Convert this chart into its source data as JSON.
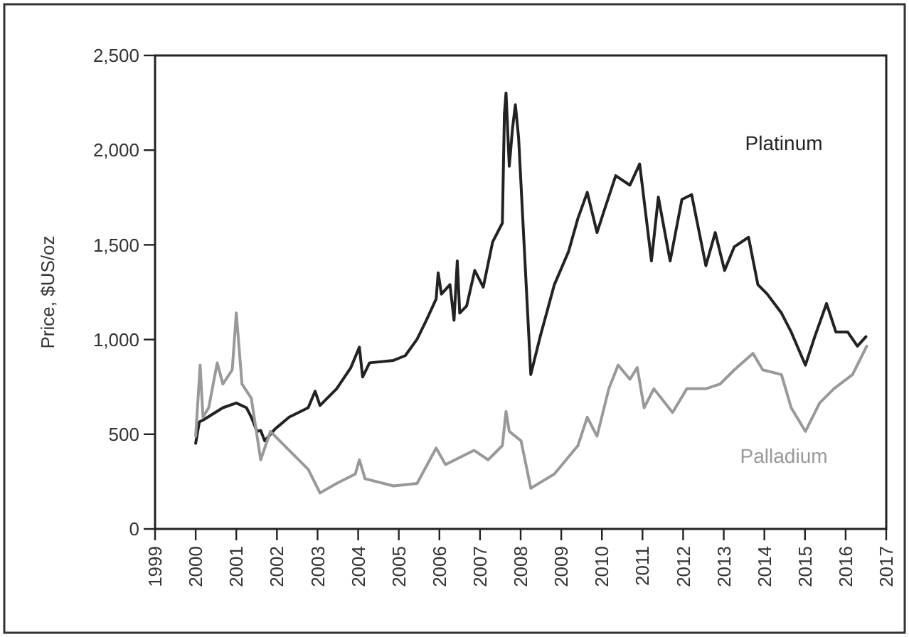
{
  "chart_data": {
    "type": "line",
    "ylabel": "Price, $US/oz",
    "xlim": [
      1999,
      2017
    ],
    "xticks": [
      1999,
      2000,
      2001,
      2002,
      2003,
      2004,
      2005,
      2006,
      2007,
      2008,
      2009,
      2010,
      2011,
      2012,
      2013,
      2014,
      2015,
      2016,
      2017
    ],
    "ylim": [
      0,
      2500
    ],
    "yticks": [
      0,
      500,
      {
        "value": 1000,
        "label": "1,000"
      },
      {
        "value": 1500,
        "label": "1,500"
      },
      {
        "value": 2000,
        "label": "2,000"
      },
      {
        "value": 2500,
        "label": "2,500"
      }
    ],
    "grid": false,
    "marker": "none",
    "line_style": "solid",
    "series": [
      {
        "name": "Platinum",
        "color": "#222222",
        "x": [
          2000.0,
          2000.09,
          2000.2,
          2000.67,
          2001.0,
          2001.25,
          2001.37,
          2001.51,
          2001.6,
          2001.7,
          2001.95,
          2002.3,
          2002.77,
          2002.94,
          2003.06,
          2003.47,
          2003.82,
          2004.03,
          2004.11,
          2004.28,
          2004.87,
          2005.16,
          2005.45,
          2005.68,
          2005.92,
          2005.97,
          2006.05,
          2006.26,
          2006.36,
          2006.44,
          2006.5,
          2006.67,
          2006.87,
          2007.08,
          2007.31,
          2007.55,
          2007.6,
          2007.64,
          2007.72,
          2007.8,
          2007.87,
          2007.95,
          2008.25,
          2008.48,
          2008.83,
          2009.18,
          2009.41,
          2009.64,
          2009.88,
          2010.05,
          2010.34,
          2010.69,
          2010.93,
          2011.22,
          2011.39,
          2011.68,
          2011.97,
          2012.21,
          2012.56,
          2012.79,
          2013.02,
          2013.26,
          2013.61,
          2013.84,
          2014.07,
          2014.42,
          2014.66,
          2015.01,
          2015.24,
          2015.53,
          2015.76,
          2016.05,
          2016.29,
          2016.5
        ],
        "values": [
          452,
          565,
          577,
          640,
          665,
          640,
          590,
          515,
          520,
          465,
          527,
          590,
          640,
          727,
          652,
          740,
          852,
          960,
          802,
          877,
          890,
          915,
          1002,
          1102,
          1215,
          1352,
          1240,
          1290,
          1102,
          1415,
          1140,
          1177,
          1365,
          1277,
          1515,
          1615,
          2190,
          2302,
          1915,
          2115,
          2240,
          2065,
          815,
          1015,
          1290,
          1465,
          1640,
          1777,
          1565,
          1677,
          1865,
          1815,
          1927,
          1415,
          1752,
          1415,
          1740,
          1765,
          1390,
          1565,
          1365,
          1490,
          1540,
          1290,
          1240,
          1140,
          1040,
          865,
          1015,
          1190,
          1040,
          1040,
          965,
          1015
        ]
      },
      {
        "name": "Palladium",
        "color": "#999999",
        "x": [
          2000.0,
          2000.11,
          2000.18,
          2000.32,
          2000.53,
          2000.67,
          2000.9,
          2001.0,
          2001.14,
          2001.37,
          2001.6,
          2001.84,
          2002.3,
          2002.77,
          2003.06,
          2003.47,
          2003.93,
          2004.03,
          2004.17,
          2004.87,
          2005.45,
          2005.92,
          2006.15,
          2006.85,
          2007.2,
          2007.55,
          2007.64,
          2007.72,
          2008.01,
          2008.25,
          2008.83,
          2009.41,
          2009.64,
          2009.88,
          2010.17,
          2010.4,
          2010.69,
          2010.87,
          2011.04,
          2011.28,
          2011.74,
          2012.09,
          2012.56,
          2012.91,
          2013.26,
          2013.72,
          2013.96,
          2014.42,
          2014.66,
          2015.01,
          2015.36,
          2015.71,
          2016.17,
          2016.52
        ],
        "values": [
          490,
          865,
          590,
          640,
          877,
          765,
          840,
          1140,
          765,
          690,
          365,
          515,
          415,
          315,
          190,
          240,
          290,
          365,
          265,
          227,
          240,
          427,
          340,
          415,
          365,
          440,
          620,
          515,
          465,
          215,
          290,
          440,
          590,
          490,
          740,
          865,
          790,
          852,
          640,
          740,
          615,
          740,
          740,
          765,
          840,
          927,
          840,
          815,
          640,
          515,
          665,
          740,
          815,
          965
        ]
      }
    ]
  }
}
